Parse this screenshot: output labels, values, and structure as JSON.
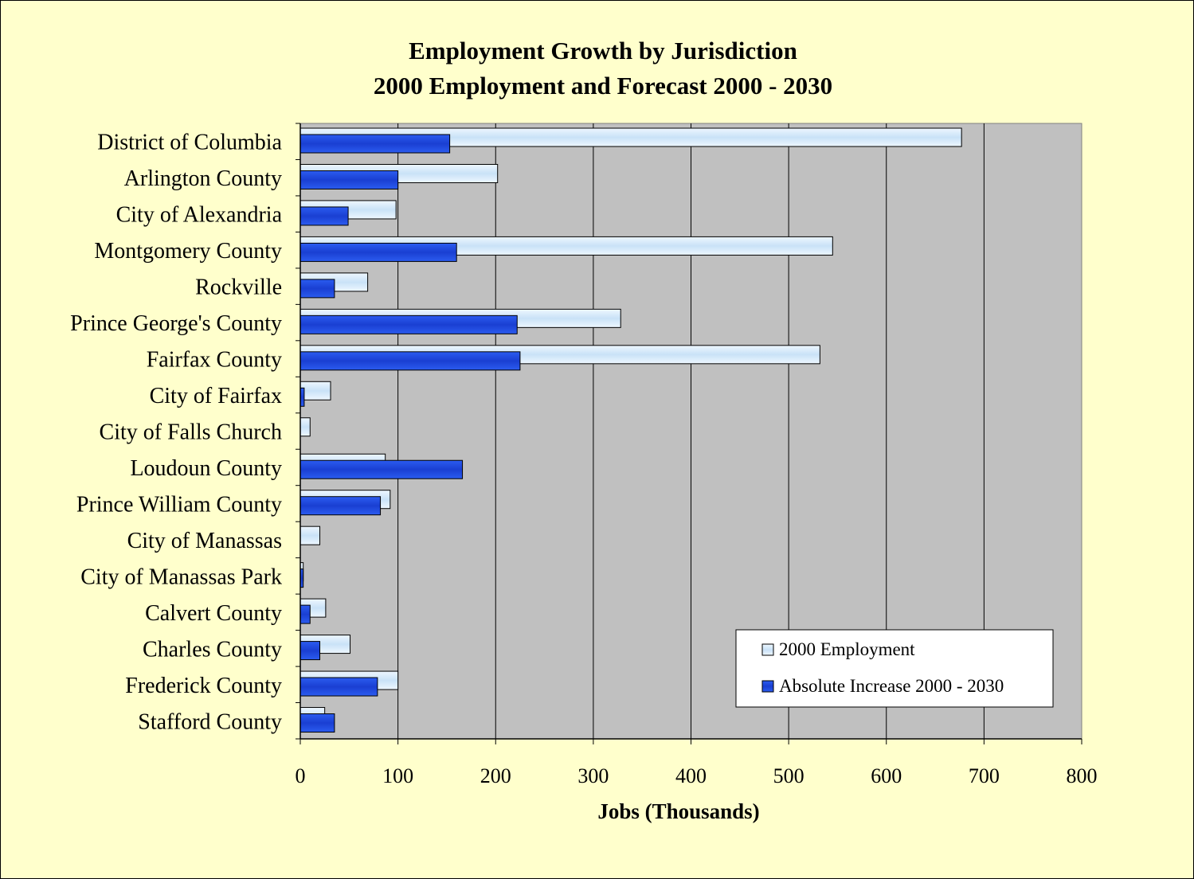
{
  "chart_data": {
    "type": "bar",
    "orientation": "horizontal",
    "title": "Employment Growth by Jurisdiction",
    "subtitle": "2000 Employment and Forecast 2000 - 2030",
    "xlabel": "Jobs (Thousands)",
    "ylabel": "",
    "xlim": [
      0,
      800
    ],
    "xticks": [
      0,
      100,
      200,
      300,
      400,
      500,
      600,
      700,
      800
    ],
    "grid": "vertical",
    "legend_position": "bottom-right",
    "categories": [
      "District of Columbia",
      "Arlington County",
      "City of Alexandria",
      "Montgomery County",
      "Rockville",
      "Prince George's County",
      "Fairfax County",
      "City of Fairfax",
      "City of Falls Church",
      "Loudoun County",
      "Prince William County",
      "City of Manassas",
      "City of Manassas Park",
      "Calvert County",
      "Charles County",
      "Frederick County",
      "Stafford County"
    ],
    "series": [
      {
        "name": "2000 Employment",
        "color": "#d9ecfb",
        "values": [
          677,
          202,
          98,
          545,
          69,
          328,
          532,
          31,
          10,
          87,
          92,
          20,
          3,
          26,
          51,
          100,
          25
        ]
      },
      {
        "name": "Absolute Increase 2000 - 2030",
        "color": "#1f49e0",
        "values": [
          153,
          100,
          49,
          160,
          35,
          222,
          225,
          4,
          0,
          166,
          82,
          0,
          3,
          10,
          20,
          79,
          35
        ]
      }
    ]
  }
}
